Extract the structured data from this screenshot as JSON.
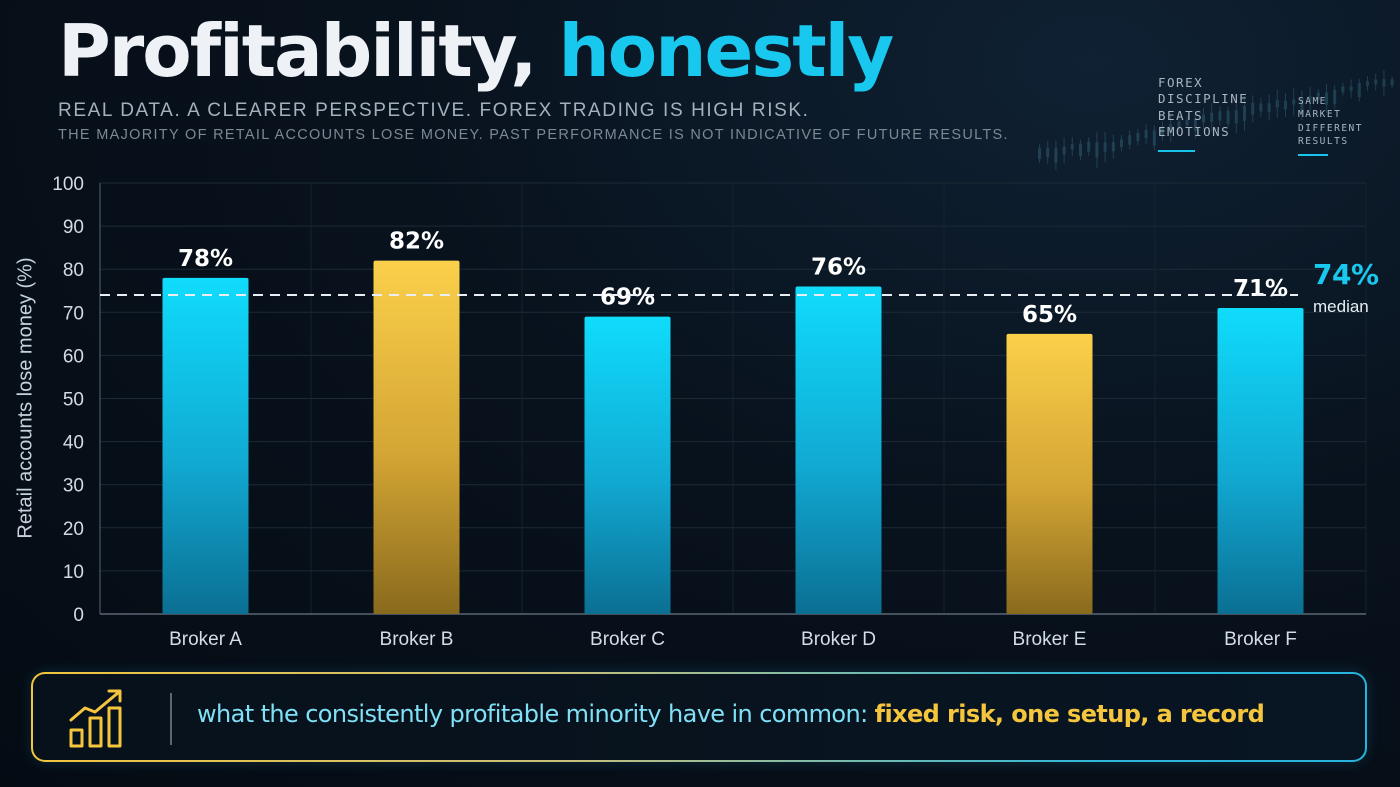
{
  "header": {
    "title_main": "Profitability,",
    "title_accent": "honestly",
    "subtitle": "REAL DATA. A CLEARER PERSPECTIVE. FOREX TRADING IS HIGH RISK.",
    "disclaimer": "THE MAJORITY OF RETAIL ACCOUNTS LOSE MONEY. PAST PERFORMANCE IS NOT INDICATIVE OF FUTURE RESULTS."
  },
  "side_notes": [
    {
      "lines": [
        "FOREX",
        "DISCIPLINE",
        "BEATS",
        "EMOTIONS"
      ]
    },
    {
      "lines": [
        "SAME",
        "MARKET",
        "DIFFERENT",
        "RESULTS"
      ]
    }
  ],
  "colors": {
    "accent_cyan": "#18c8ef",
    "accent_gold": "#f5c63d",
    "background": "#07111b"
  },
  "chart_data": {
    "type": "bar",
    "categories": [
      "Broker A",
      "Broker B",
      "Broker C",
      "Broker D",
      "Broker E",
      "Broker F"
    ],
    "values": [
      78,
      82,
      69,
      76,
      65,
      71
    ],
    "value_labels": [
      "78%",
      "82%",
      "69%",
      "76%",
      "65%",
      "71%"
    ],
    "bar_colors": [
      "cyan",
      "gold",
      "cyan",
      "cyan",
      "gold",
      "cyan"
    ],
    "ylabel": "Retail accounts lose money (%)",
    "ylim": [
      0,
      100
    ],
    "yticks": [
      0,
      10,
      20,
      30,
      40,
      50,
      60,
      70,
      80,
      90,
      100
    ],
    "grid": true,
    "reference_line": {
      "value": 74,
      "label": "74%",
      "sublabel": "median",
      "style": "dashed"
    }
  },
  "callout": {
    "icon": "growth-chart-icon",
    "text_plain": "what the consistently profitable minority have in common: ",
    "text_highlight": "fixed risk, one setup, a record"
  }
}
